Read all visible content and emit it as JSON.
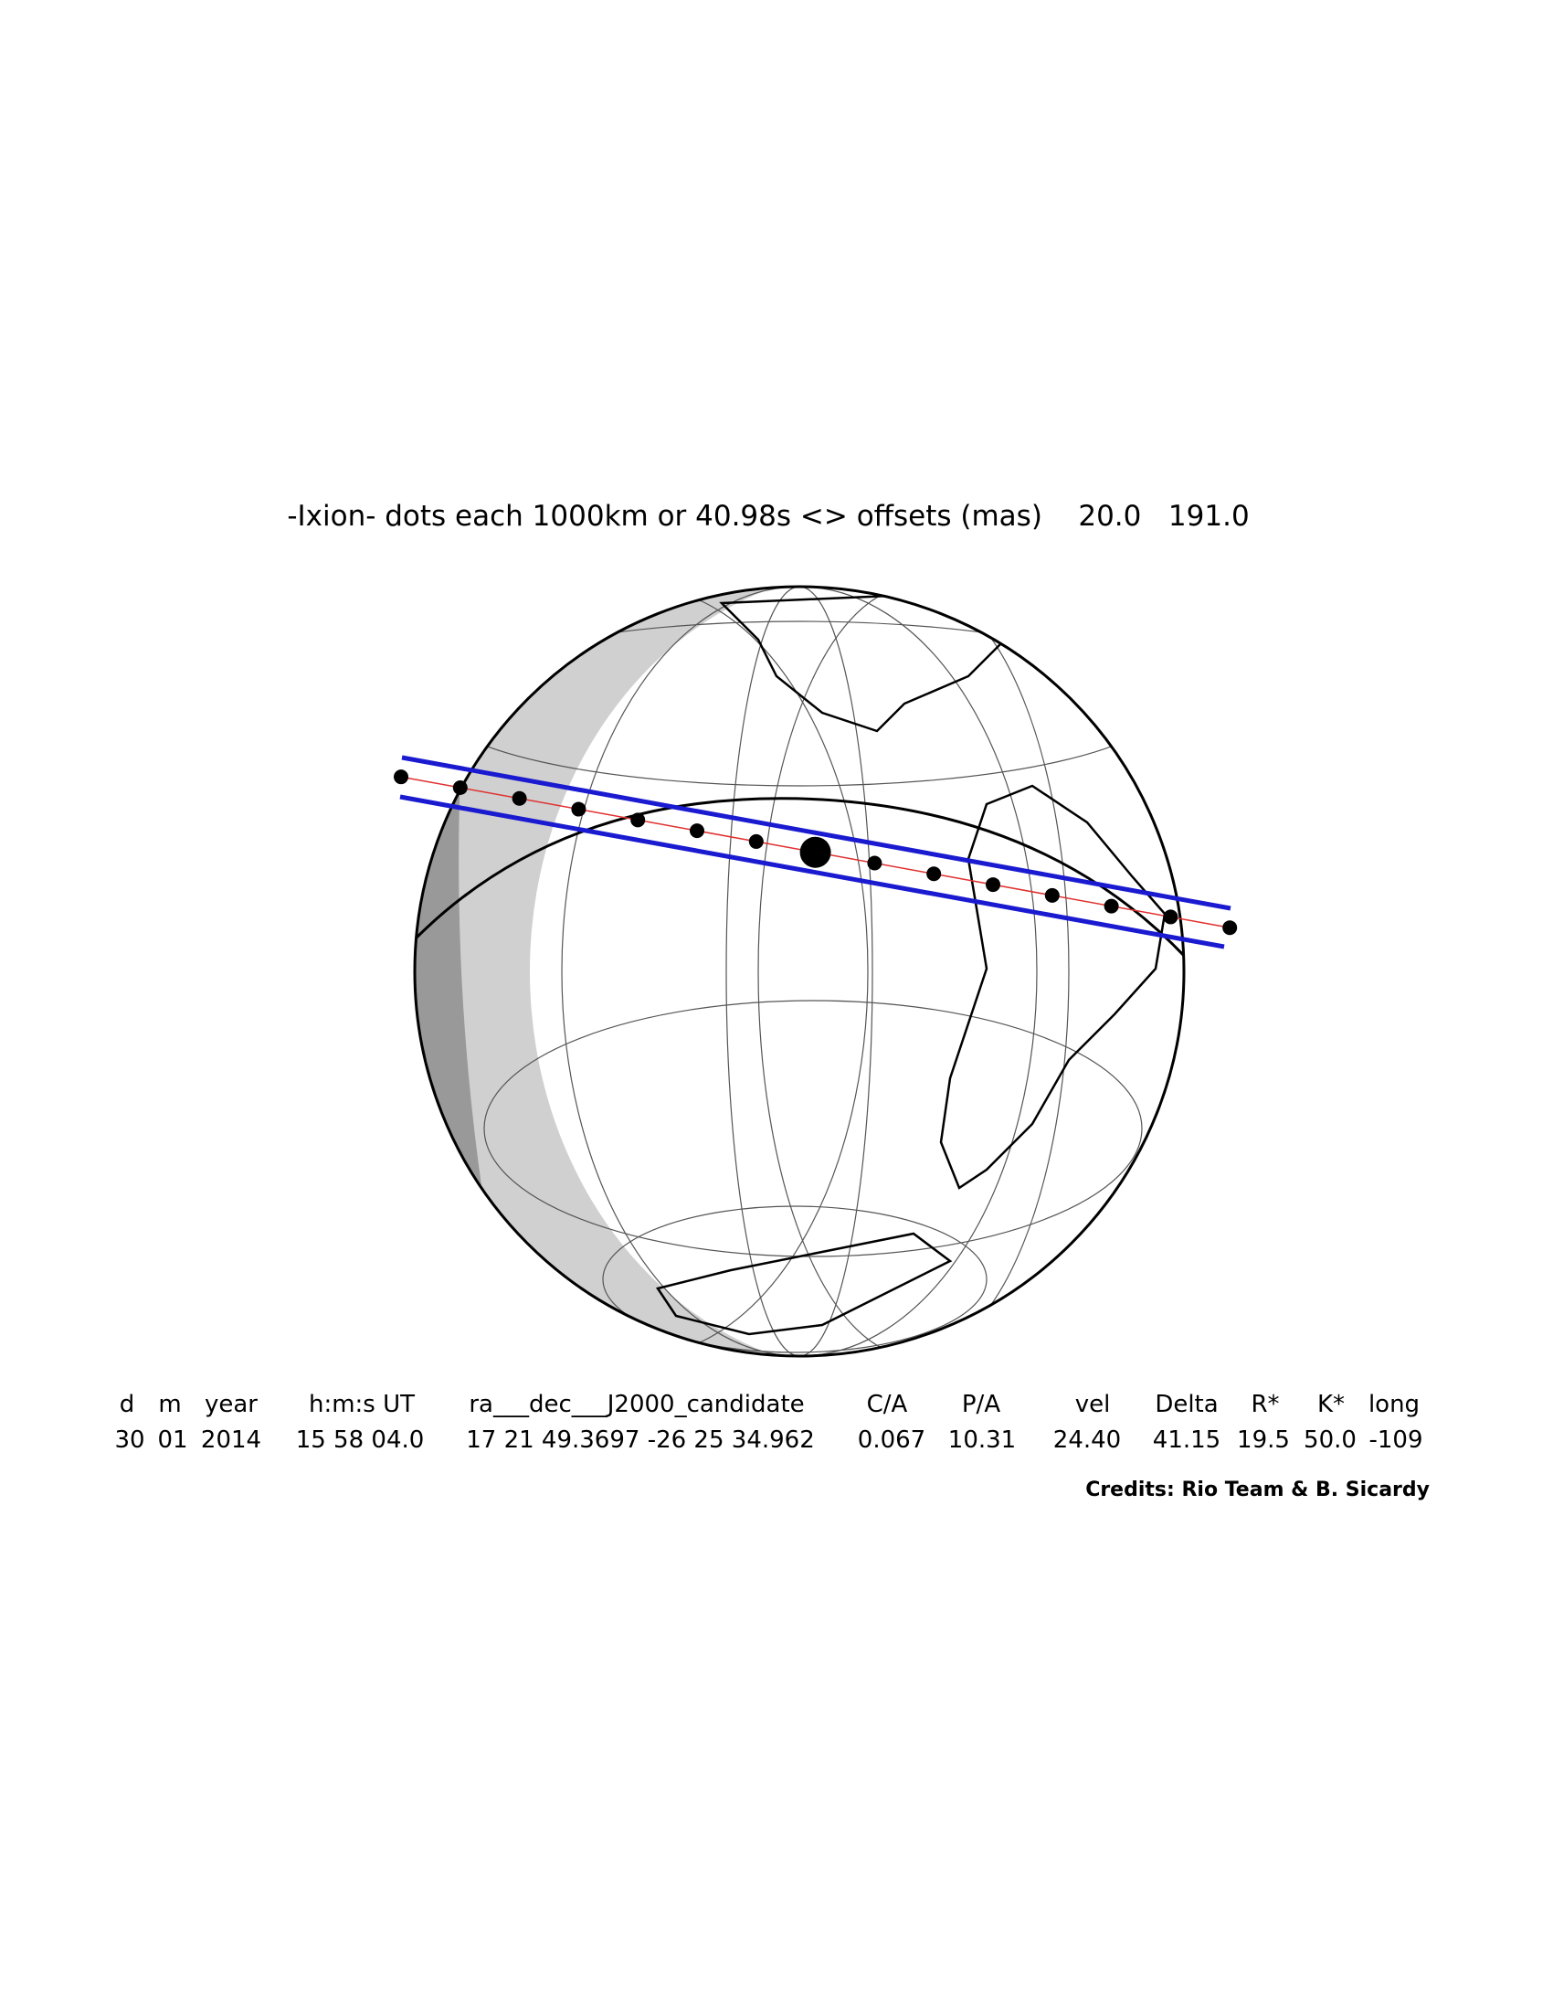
{
  "header": {
    "title": "-Ixion- dots each 1000km or 40.98s <> offsets (mas)    20.0   191.0"
  },
  "table": {
    "columns": [
      "d",
      "m",
      "year",
      "h:m:s UT",
      "ra___dec___J2000_candidate",
      "C/A",
      "P/A",
      "vel",
      "Delta",
      "R*",
      "K*",
      "long"
    ],
    "values": [
      "30",
      "01",
      "2014",
      "15 58 04.0",
      "17 21 49.3697 -26 25 34.962",
      "0.067",
      "10.31",
      "24.40",
      "41.15",
      "19.5",
      "50.0",
      "-109"
    ]
  },
  "credits": "Credits: Rio Team & B. Sicardy"
}
